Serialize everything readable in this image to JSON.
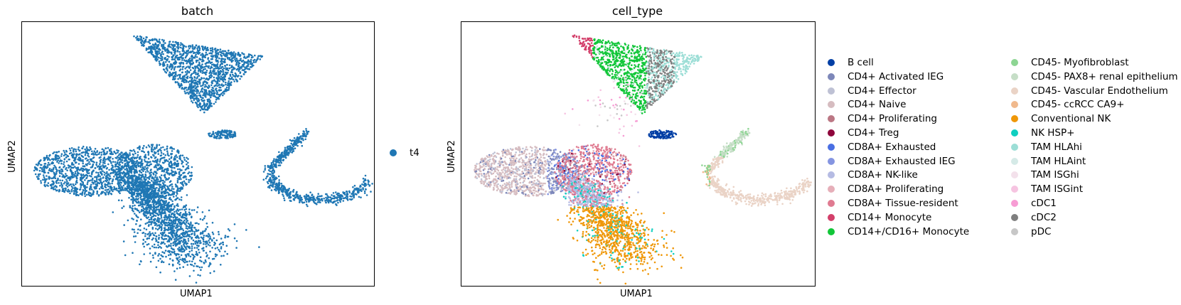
{
  "chart_data": [
    {
      "type": "scatter",
      "title": "batch",
      "xlabel": "UMAP1",
      "ylabel": "UMAP2",
      "grid": false,
      "legend_placement": "right",
      "legend": [
        {
          "label": "t4",
          "color": "#1f77b4"
        }
      ]
    },
    {
      "type": "scatter",
      "title": "cell_type",
      "xlabel": "UMAP1",
      "ylabel": "UMAP2",
      "grid": false,
      "legend_placement": "right",
      "legend": [
        {
          "label": "B cell",
          "color": "#023fa5"
        },
        {
          "label": "CD4+ Activated IEG",
          "color": "#7d87b9"
        },
        {
          "label": "CD4+ Effector",
          "color": "#bec1d4"
        },
        {
          "label": "CD4+ Naive",
          "color": "#d6bcc0"
        },
        {
          "label": "CD4+ Proliferating",
          "color": "#bb7784"
        },
        {
          "label": "CD4+ Treg",
          "color": "#8e063b"
        },
        {
          "label": "CD8A+ Exhausted",
          "color": "#4a6fe3"
        },
        {
          "label": "CD8A+ Exhausted IEG",
          "color": "#8595e1"
        },
        {
          "label": "CD8A+ NK-like",
          "color": "#b5bbe3"
        },
        {
          "label": "CD8A+ Proliferating",
          "color": "#e6afb9"
        },
        {
          "label": "CD8A+ Tissue-resident",
          "color": "#e07b91"
        },
        {
          "label": "CD14+ Monocyte",
          "color": "#d33f6a"
        },
        {
          "label": "CD14+/CD16+ Monocyte",
          "color": "#11c638"
        },
        {
          "label": "CD45- Myofibroblast",
          "color": "#8dd593"
        },
        {
          "label": "CD45- PAX8+ renal epithelium",
          "color": "#c6dec7"
        },
        {
          "label": "CD45- Vascular Endothelium",
          "color": "#ead3c6"
        },
        {
          "label": "CD45- ccRCC CA9+",
          "color": "#f0b98d"
        },
        {
          "label": "Conventional NK",
          "color": "#ef9708"
        },
        {
          "label": "NK HSP+",
          "color": "#0fcfc0"
        },
        {
          "label": "TAM HLAhi",
          "color": "#9cded6"
        },
        {
          "label": "TAM HLAint",
          "color": "#d5eae7"
        },
        {
          "label": "TAM ISGhi",
          "color": "#f3e1eb"
        },
        {
          "label": "TAM ISGint",
          "color": "#f6c4e1"
        },
        {
          "label": "cDC1",
          "color": "#f79cd4"
        },
        {
          "label": "cDC2",
          "color": "#7f7f7f"
        },
        {
          "label": "pDC",
          "color": "#c7c7c7"
        }
      ]
    }
  ]
}
